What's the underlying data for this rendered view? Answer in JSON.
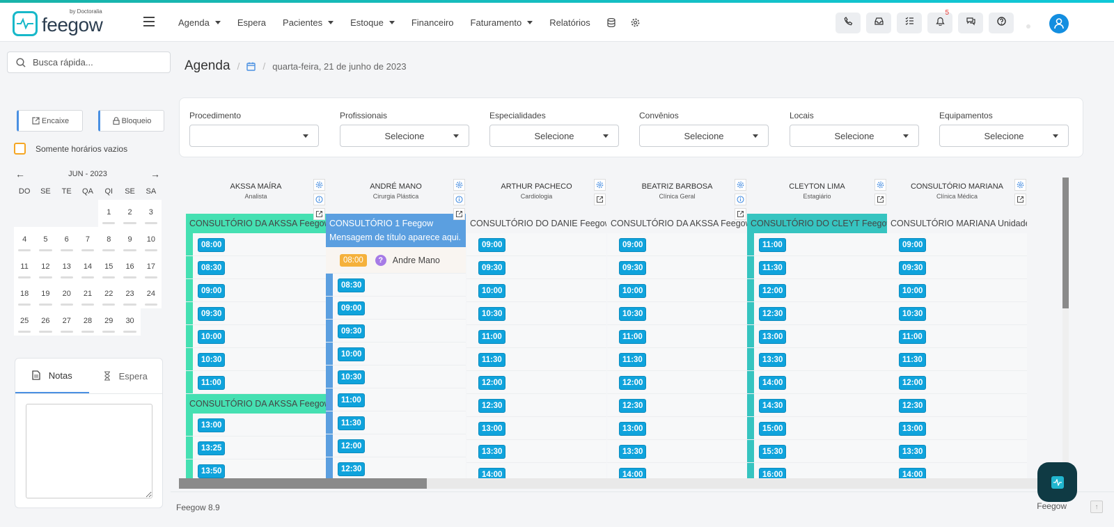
{
  "brand": {
    "name": "feegow",
    "by": "by Doctoralia"
  },
  "nav": {
    "items": [
      {
        "label": "Agenda",
        "dropdown": true
      },
      {
        "label": "Espera",
        "dropdown": false
      },
      {
        "label": "Pacientes",
        "dropdown": true
      },
      {
        "label": "Estoque",
        "dropdown": true
      },
      {
        "label": "Financeiro",
        "dropdown": false
      },
      {
        "label": "Faturamento",
        "dropdown": true
      },
      {
        "label": "Relatórios",
        "dropdown": false
      }
    ]
  },
  "header": {
    "notifications_count": "5",
    "buttons": [
      "phone-icon",
      "inbox-icon",
      "tasks-icon",
      "bell-icon",
      "chat-icon",
      "help-icon"
    ]
  },
  "sidebar": {
    "search_placeholder": "Busca rápida...",
    "encaixe_label": "Encaixe",
    "bloqueio_label": "Bloqueio",
    "empty_slots_label": "Somente horários vazios",
    "calendar": {
      "month_label": "JUN - 2023",
      "dow": [
        "DO",
        "SE",
        "TE",
        "QA",
        "QI",
        "SE",
        "SA"
      ],
      "leading_empty": 4,
      "days": [
        "1",
        "2",
        "3",
        "4",
        "5",
        "6",
        "7",
        "8",
        "9",
        "10",
        "11",
        "12",
        "13",
        "14",
        "15",
        "16",
        "17",
        "18",
        "19",
        "20",
        "21",
        "22",
        "23",
        "24",
        "25",
        "26",
        "27",
        "28",
        "29",
        "30"
      ]
    },
    "tabs": [
      {
        "label": "Notas",
        "active": true
      },
      {
        "label": "Espera",
        "active": false
      }
    ]
  },
  "breadcrumb": {
    "title": "Agenda",
    "date": "quarta-feira, 21 de junho de 2023"
  },
  "filters": [
    {
      "label": "Procedimento",
      "value": ""
    },
    {
      "label": "Profissionais",
      "value": "Selecione"
    },
    {
      "label": "Especialidades",
      "value": "Selecione"
    },
    {
      "label": "Convênios",
      "value": "Selecione"
    },
    {
      "label": "Locais",
      "value": "Selecione"
    },
    {
      "label": "Equipamentos",
      "value": "Selecione"
    }
  ],
  "columns": [
    {
      "name": "AKSSA MAÍRA",
      "specialty": "Analista",
      "icons": [
        "gear-icon",
        "info-icon",
        "external-link-icon"
      ],
      "color": "#45e0b2",
      "blocks": [
        {
          "location": "CONSULTÓRIO DA AKSSA Feegow",
          "style": "teal",
          "times": [
            "08:00",
            "08:30",
            "09:00",
            "09:30",
            "10:00",
            "10:30",
            "11:00"
          ]
        },
        {
          "location": "CONSULTÓRIO DA AKSSA Feegow",
          "style": "teal",
          "times": [
            "13:00",
            "13:25",
            "13:50"
          ]
        }
      ]
    },
    {
      "name": "ANDRÉ MANO",
      "specialty": "Cirurgia Plástica",
      "icons": [
        "gear-icon",
        "info-icon",
        "external-link-icon"
      ],
      "color": "#5b9fe0",
      "blocks": [
        {
          "location": "CONSULTÓRIO 1 Feegow Mensagem de título aparece aqui.",
          "style": "blue",
          "appointment": {
            "time": "08:00",
            "patient": "Andre Mano"
          },
          "times": [
            "08:30",
            "09:00",
            "09:30",
            "10:00",
            "10:30",
            "11:00",
            "11:30",
            "12:00",
            "12:30"
          ]
        }
      ]
    },
    {
      "name": "ARTHUR PACHECO",
      "specialty": "Cardiologia",
      "icons": [
        "gear-icon",
        "external-link-icon"
      ],
      "color": "",
      "blocks": [
        {
          "location": "CONSULTÓRIO DO DANIE Feegow",
          "style": "plain",
          "times": [
            "09:00",
            "09:30",
            "10:00",
            "10:30",
            "11:00",
            "11:30",
            "12:00",
            "12:30",
            "13:00",
            "13:30",
            "14:00"
          ]
        }
      ]
    },
    {
      "name": "BEATRIZ BARBOSA",
      "specialty": "Clínica Geral",
      "icons": [
        "gear-icon",
        "info-icon",
        "external-link-icon"
      ],
      "color": "",
      "blocks": [
        {
          "location": "CONSULTÓRIO DA AKSSA Feegow",
          "style": "plain",
          "times": [
            "09:00",
            "09:30",
            "10:00",
            "10:30",
            "11:00",
            "11:30",
            "12:00",
            "12:30",
            "13:00",
            "13:30",
            "14:00"
          ]
        }
      ]
    },
    {
      "name": "CLEYTON LIMA",
      "specialty": "Estagiário",
      "icons": [
        "gear-icon",
        "external-link-icon"
      ],
      "color": "#36c4c0",
      "blocks": [
        {
          "location": "CONSULTÓRIO DO CLEYT Feegow",
          "style": "teal2",
          "times": [
            "11:00",
            "11:30",
            "12:00",
            "12:30",
            "13:00",
            "13:30",
            "14:00",
            "14:30",
            "15:00",
            "15:30",
            "16:00"
          ]
        }
      ]
    },
    {
      "name": "CONSULTÓRIO MARIANA",
      "specialty": "Clínica Médica",
      "icons": [
        "gear-icon",
        "external-link-icon"
      ],
      "color": "",
      "blocks": [
        {
          "location": "CONSULTÓRIO MARIANA Unidade - Mariana",
          "style": "plain",
          "times": [
            "09:00",
            "09:30",
            "10:00",
            "10:30",
            "11:00",
            "11:30",
            "12:00",
            "12:30",
            "13:00",
            "13:30",
            "14:00"
          ]
        }
      ]
    }
  ],
  "footer": {
    "version": "Feegow 8.9",
    "brand": "Feegow"
  }
}
